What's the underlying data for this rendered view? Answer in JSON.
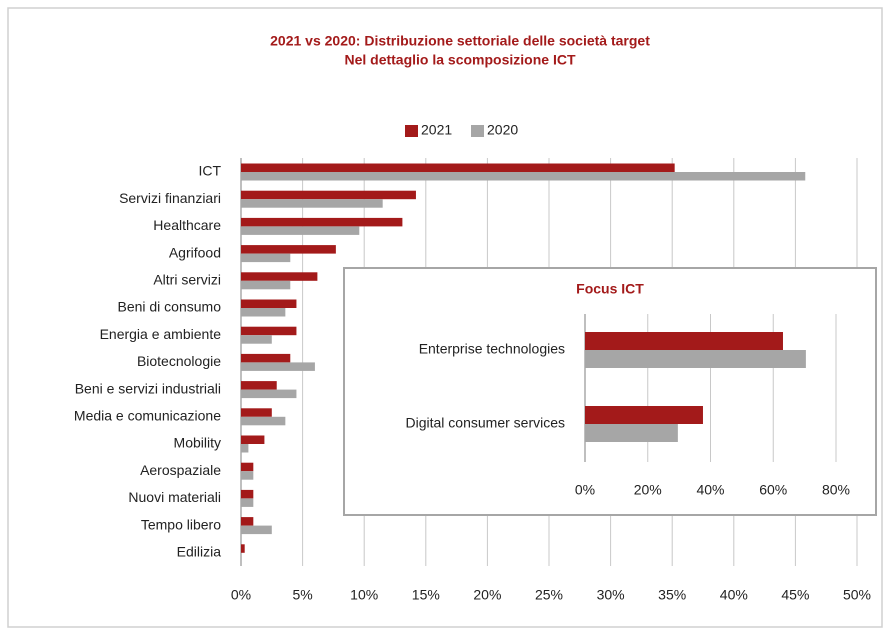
{
  "chart_data": [
    {
      "type": "bar",
      "orientation": "horizontal",
      "title": "2021 vs 2020: Distribuzione settoriale delle società target",
      "subtitle": "Nel dettaglio la scomposizione ICT",
      "categories": [
        "ICT",
        "Servizi finanziari",
        "Healthcare",
        "Agrifood",
        "Altri servizi",
        "Beni di consumo",
        "Energia e ambiente",
        "Biotecnologie",
        "Beni e servizi industriali",
        "Media e comunicazione",
        "Mobility",
        "Aerospaziale",
        "Nuovi materiali",
        "Tempo libero",
        "Edilizia"
      ],
      "series": [
        {
          "name": "2021",
          "color": "#a31a1a",
          "values": [
            35.2,
            14.2,
            13.1,
            7.7,
            6.2,
            4.5,
            4.5,
            4.0,
            2.9,
            2.5,
            1.9,
            1.0,
            1.0,
            1.0,
            0.3
          ]
        },
        {
          "name": "2020",
          "color": "#a6a6a6",
          "values": [
            45.8,
            11.5,
            9.6,
            4.0,
            4.0,
            3.6,
            2.5,
            6.0,
            4.5,
            3.6,
            0.6,
            1.0,
            1.0,
            2.5,
            0
          ]
        }
      ],
      "xlim": [
        0,
        50
      ],
      "xticks": [
        {
          "value": 0,
          "label": "0%"
        },
        {
          "value": 5,
          "label": "5%"
        },
        {
          "value": 10,
          "label": "10%"
        },
        {
          "value": 15,
          "label": "15%"
        },
        {
          "value": 20,
          "label": "20%"
        },
        {
          "value": 25,
          "label": "25%"
        },
        {
          "value": 30,
          "label": "30%"
        },
        {
          "value": 35,
          "label": "35%"
        },
        {
          "value": 40,
          "label": "40%"
        },
        {
          "value": 45,
          "label": "45%"
        },
        {
          "value": 50,
          "label": "50%"
        }
      ],
      "grid": true,
      "legend": "top"
    },
    {
      "type": "bar",
      "orientation": "horizontal",
      "title": "Focus ICT",
      "categories": [
        "Enterprise technologies",
        "Digital consumer services"
      ],
      "series": [
        {
          "name": "2021",
          "color": "#a31a1a",
          "values": [
            63.1,
            37.6
          ]
        },
        {
          "name": "2020",
          "color": "#a6a6a6",
          "values": [
            70.4,
            29.6
          ]
        }
      ],
      "xlim": [
        0,
        80
      ],
      "xticks": [
        {
          "value": 0,
          "label": "0%"
        },
        {
          "value": 20,
          "label": "20%"
        },
        {
          "value": 40,
          "label": "40%"
        },
        {
          "value": 60,
          "label": "60%"
        },
        {
          "value": 80,
          "label": "80%"
        }
      ],
      "grid": true
    }
  ]
}
